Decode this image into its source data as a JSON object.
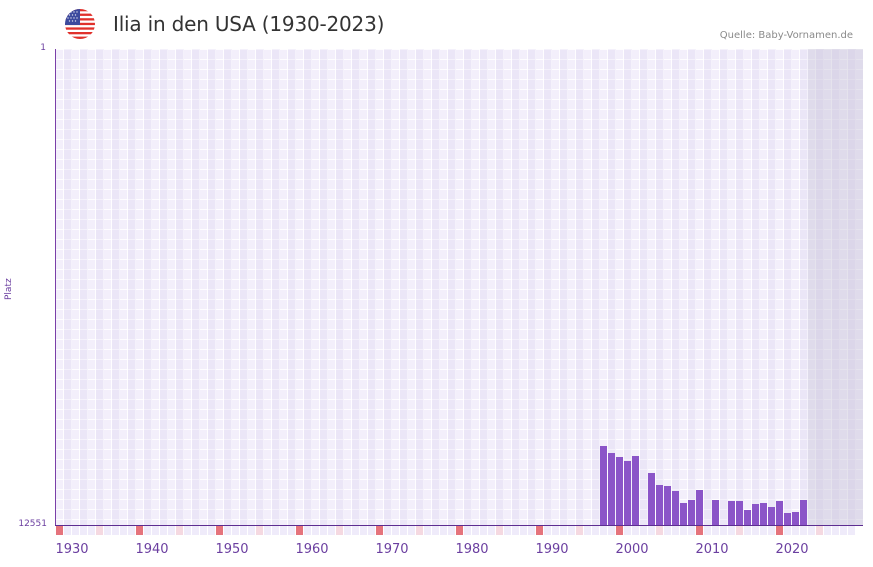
{
  "header": {
    "flag_icon": "usa-flag-icon",
    "title": "Ilia in den USA (1930-2023)",
    "source": "Quelle: Baby-Vornamen.de"
  },
  "colors": {
    "bar": "#8b55c8",
    "axis": "#5d2d91",
    "label": "#6b3fa0",
    "decade_marker": "#e5737c",
    "half_decade_marker": "#f5d9e1",
    "grid_bg": "#f3effb",
    "future_shade": "#e3dfec"
  },
  "chart_data": {
    "type": "bar",
    "title": "Ilia in den USA (1930-2023)",
    "xlabel": "",
    "ylabel": "Platz",
    "y_inverted": true,
    "ylim": [
      1,
      12551
    ],
    "ytick_labels": [
      "1",
      "12551"
    ],
    "xtick_labels": [
      "1930",
      "1940",
      "1950",
      "1960",
      "1970",
      "1980",
      "1990",
      "2000",
      "2010",
      "2020"
    ],
    "xlim": [
      1928,
      2028
    ],
    "grid": true,
    "legend": null,
    "annotation": "Quelle: Baby-Vornamen.de",
    "categories": [
      1996,
      1997,
      1998,
      1999,
      2000,
      2001,
      2002,
      2003,
      2004,
      2005,
      2006,
      2007,
      2008,
      2009,
      2010,
      2011,
      2012,
      2013,
      2014,
      2015,
      2016,
      2017,
      2018,
      2019,
      2020,
      2021
    ],
    "series": [
      {
        "name": "Platz",
        "values": [
          10470,
          10655,
          10760,
          10865,
          10735,
          null,
          11180,
          11500,
          11525,
          11655,
          11970,
          11895,
          11630,
          null,
          11895,
          null,
          11920,
          11920,
          12155,
          12000,
          11970,
          12075,
          11920,
          12235,
          12210,
          11895
        ]
      }
    ]
  }
}
